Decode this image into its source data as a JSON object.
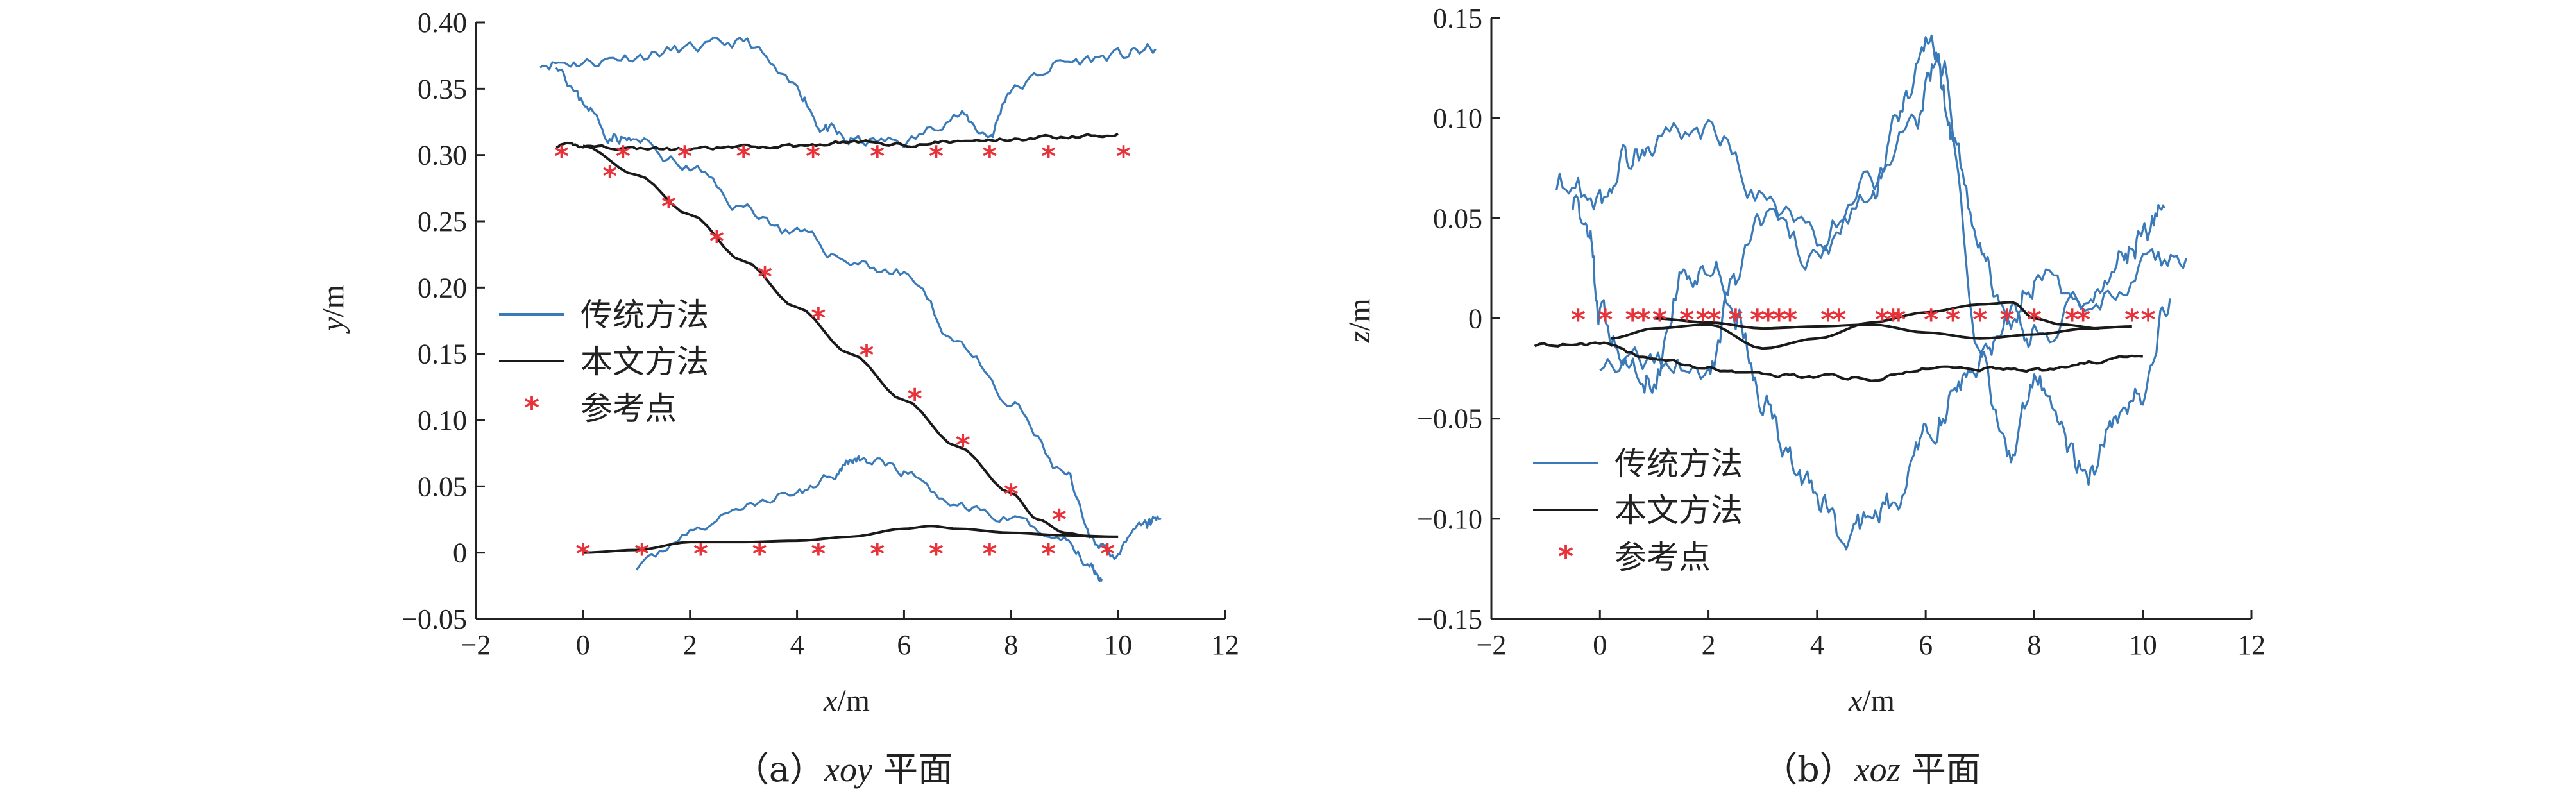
{
  "colors": {
    "traditional": "#3a7ab8",
    "proposed": "#1a1a1a",
    "reference": "#e8323a",
    "axis": "#222222"
  },
  "chart_data": [
    {
      "type": "line",
      "caption": {
        "prefix": "（a）",
        "italic": "xoy",
        "suffix": " 平面"
      },
      "xlabel": {
        "var": "x",
        "unit": "/m"
      },
      "ylabel": {
        "var": "y",
        "unit": "/m"
      },
      "xlim": [
        -2,
        12
      ],
      "ylim": [
        -0.05,
        0.4
      ],
      "xticks": [
        -2,
        0,
        2,
        4,
        6,
        8,
        10,
        12
      ],
      "xtick_labels": [
        "−2",
        "0",
        "2",
        "4",
        "6",
        "8",
        "10",
        "12"
      ],
      "yticks": [
        -0.05,
        0,
        0.05,
        0.1,
        0.15,
        0.2,
        0.25,
        0.3,
        0.35,
        0.4
      ],
      "ytick_labels": [
        "−0.05",
        "0",
        "0.05",
        "0.10",
        "0.15",
        "0.20",
        "0.25",
        "0.30",
        "0.35",
        "0.40"
      ],
      "legend": {
        "position": "middle-left",
        "entries": [
          "传统方法",
          "本文方法",
          "参考点"
        ]
      },
      "series": [
        {
          "name": "传统方法",
          "kind": "line",
          "color_key": "traditional",
          "noise": 0.004,
          "seed": 11,
          "x": [
            -0.8,
            0,
            1,
            2,
            3,
            4,
            4.5,
            5,
            6,
            7,
            7.6,
            8,
            9,
            10,
            10.7
          ],
          "y": [
            0.37,
            0.37,
            0.375,
            0.38,
            0.385,
            0.35,
            0.32,
            0.31,
            0.31,
            0.33,
            0.315,
            0.35,
            0.37,
            0.375,
            0.38
          ]
        },
        {
          "name": "传统方法",
          "kind": "line",
          "color_key": "traditional",
          "noise": 0.004,
          "seed": 23,
          "x": [
            -0.5,
            0,
            0.5,
            1,
            2,
            3,
            4,
            5,
            6,
            7,
            8,
            9,
            9.5,
            10,
            10.5,
            10.8
          ],
          "y": [
            0.37,
            0.34,
            0.315,
            0.31,
            0.29,
            0.26,
            0.24,
            0.22,
            0.21,
            0.16,
            0.11,
            0.06,
            0.01,
            0.0,
            0.02,
            0.025
          ]
        },
        {
          "name": "传统方法",
          "kind": "line",
          "color_key": "traditional",
          "noise": 0.003,
          "seed": 37,
          "x": [
            1,
            2,
            3,
            4,
            4.7,
            5,
            5.3,
            6,
            7,
            8,
            9,
            9.5,
            9.7
          ],
          "y": [
            -0.01,
            0.015,
            0.035,
            0.045,
            0.06,
            0.07,
            0.07,
            0.06,
            0.035,
            0.025,
            0.01,
            -0.01,
            -0.02
          ]
        },
        {
          "name": "本文方法",
          "kind": "line",
          "color_key": "proposed",
          "noise": 0.0012,
          "seed": 41,
          "x": [
            -0.5,
            0,
            1,
            2,
            3,
            4,
            5,
            6,
            7,
            8,
            9,
            10
          ],
          "y": [
            0.307,
            0.307,
            0.305,
            0.304,
            0.306,
            0.307,
            0.31,
            0.308,
            0.31,
            0.312,
            0.314,
            0.316
          ]
        },
        {
          "name": "本文方法",
          "kind": "line",
          "color_key": "proposed",
          "noise": 0,
          "seed": 0,
          "x": [
            0,
            1,
            2,
            3,
            4,
            5,
            6,
            7,
            8,
            8.5,
            9,
            9.5,
            10
          ],
          "y": [
            0.307,
            0.285,
            0.255,
            0.22,
            0.185,
            0.15,
            0.115,
            0.08,
            0.045,
            0.025,
            0.015,
            0.012,
            0.012
          ]
        },
        {
          "name": "本文方法",
          "kind": "line",
          "color_key": "proposed",
          "noise": 0,
          "seed": 0,
          "x": [
            0,
            1,
            2,
            3,
            4,
            5,
            6,
            6.5,
            7,
            8,
            9,
            10
          ],
          "y": [
            0.0,
            0.002,
            0.008,
            0.008,
            0.009,
            0.012,
            0.018,
            0.02,
            0.018,
            0.015,
            0.013,
            0.012
          ]
        },
        {
          "name": "参考点",
          "kind": "marker",
          "color_key": "reference",
          "x": [
            -0.4,
            0.5,
            0.75,
            1.6,
            1.9,
            2.5,
            3.0,
            3.4,
            4.3,
            4.4,
            5.3,
            5.5,
            6.2,
            6.6,
            7.1,
            7.6,
            8.0,
            8.7,
            8.9,
            10.1
          ],
          "y": [
            0.3,
            0.285,
            0.3,
            0.262,
            0.3,
            0.236,
            0.3,
            0.209,
            0.3,
            0.178,
            0.15,
            0.3,
            0.117,
            0.3,
            0.082,
            0.3,
            0.045,
            0.3,
            0.026,
            0.3
          ]
        },
        {
          "name": "参考点",
          "kind": "marker",
          "color_key": "reference",
          "x": [
            0,
            1.1,
            2.2,
            3.3,
            4.4,
            5.5,
            6.6,
            7.6,
            8.7,
            9.8
          ],
          "y": [
            0,
            0,
            0,
            0,
            0,
            0,
            0,
            0,
            0,
            0
          ]
        }
      ]
    },
    {
      "type": "line",
      "caption": {
        "prefix": "（b）",
        "italic": "xoz",
        "suffix": " 平面"
      },
      "xlabel": {
        "var": "x",
        "unit": "/m"
      },
      "ylabel": {
        "var": "z",
        "unit": "/m"
      },
      "xlim": [
        -2,
        12
      ],
      "ylim": [
        -0.15,
        0.15
      ],
      "xticks": [
        -2,
        0,
        2,
        4,
        6,
        8,
        10,
        12
      ],
      "xtick_labels": [
        "−2",
        "0",
        "2",
        "4",
        "6",
        "8",
        "10",
        "12"
      ],
      "yticks": [
        -0.15,
        -0.1,
        -0.05,
        0,
        0.05,
        0.1,
        0.15
      ],
      "ytick_labels": [
        "−0.15",
        "−0.10",
        "−0.05",
        "0",
        "0.05",
        "0.10",
        "0.15"
      ],
      "legend": {
        "position": "bottom-left",
        "entries": [
          "传统方法",
          "本文方法",
          "参考点"
        ]
      },
      "series": [
        {
          "name": "传统方法",
          "kind": "line",
          "color_key": "traditional",
          "noise": 0.006,
          "seed": 53,
          "x": [
            -0.8,
            0,
            0.5,
            1,
            2,
            3,
            4,
            5,
            5.8,
            6.2,
            6.5,
            7,
            7.5,
            8,
            9,
            9.6,
            10,
            10.4
          ],
          "y": [
            0.07,
            0.06,
            0.08,
            0.09,
            0.095,
            0.06,
            0.04,
            0.07,
            0.1,
            0.125,
            0.09,
            0.03,
            0.0,
            -0.01,
            0.01,
            0.03,
            0.04,
            0.055
          ]
        },
        {
          "name": "传统方法",
          "kind": "line",
          "color_key": "traditional",
          "noise": 0.006,
          "seed": 67,
          "x": [
            -0.5,
            -0.2,
            0,
            0.5,
            1,
            1.5,
            2,
            2.5,
            3,
            3.5,
            4,
            4.5,
            5,
            5.5,
            6,
            6.5,
            7,
            7.5,
            8,
            9,
            10,
            10.8
          ],
          "y": [
            0.06,
            0.04,
            0.0,
            -0.025,
            -0.03,
            0.02,
            0.03,
            0.0,
            -0.04,
            -0.07,
            -0.09,
            -0.11,
            -0.1,
            -0.09,
            -0.06,
            -0.04,
            -0.02,
            0.0,
            0.02,
            0.01,
            0.025,
            0.03
          ]
        },
        {
          "name": "传统方法",
          "kind": "line",
          "color_key": "traditional",
          "noise": 0.006,
          "seed": 79,
          "x": [
            0,
            1,
            2,
            2.5,
            3,
            4,
            5,
            5.5,
            6,
            6.3,
            7,
            7.5,
            8,
            8.5,
            9,
            9.5,
            10,
            10.5
          ],
          "y": [
            -0.02,
            -0.02,
            -0.03,
            0.02,
            0.05,
            0.03,
            0.06,
            0.1,
            0.14,
            0.13,
            -0.02,
            -0.07,
            -0.03,
            -0.06,
            -0.08,
            -0.05,
            -0.04,
            0.01
          ]
        },
        {
          "name": "本文方法",
          "kind": "line",
          "color_key": "proposed",
          "noise": 0.0008,
          "seed": 83,
          "x": [
            -1.2,
            0,
            1,
            2,
            3,
            4,
            5,
            6,
            7,
            8,
            9,
            10
          ],
          "y": [
            -0.013,
            -0.013,
            -0.02,
            -0.025,
            -0.028,
            -0.029,
            -0.03,
            -0.025,
            -0.025,
            -0.026,
            -0.022,
            -0.019
          ]
        },
        {
          "name": "本文方法",
          "kind": "line",
          "color_key": "proposed",
          "noise": 0,
          "seed": 0,
          "x": [
            0.2,
            1,
            2,
            3,
            4,
            5,
            6,
            7,
            7.6,
            8,
            8.5,
            9.2
          ],
          "y": [
            -0.01,
            -0.005,
            -0.003,
            -0.015,
            -0.01,
            -0.002,
            0.003,
            0.007,
            0.008,
            0.0,
            -0.003,
            -0.005
          ]
        },
        {
          "name": "本文方法",
          "kind": "line",
          "color_key": "proposed",
          "noise": 0,
          "seed": 0,
          "x": [
            1,
            2,
            3,
            4,
            5,
            6,
            7,
            8,
            9,
            9.8
          ],
          "y": [
            0.0,
            -0.002,
            -0.005,
            -0.004,
            -0.003,
            -0.007,
            -0.01,
            -0.008,
            -0.005,
            -0.004
          ]
        },
        {
          "name": "参考点",
          "kind": "marker",
          "color_key": "reference",
          "x": [
            -0.4,
            0.1,
            0.6,
            0.8,
            1.1,
            1.6,
            1.9,
            2.1,
            2.5,
            2.9,
            3.1,
            3.3,
            3.5,
            4.2,
            4.4,
            5.2,
            5.4,
            5.5,
            6.1,
            6.5,
            7.0,
            7.5,
            8.0,
            8.7,
            8.9,
            9.8,
            10.1
          ],
          "y": [
            0,
            0,
            0,
            0,
            0,
            0,
            0,
            0,
            0,
            0,
            0,
            0,
            0,
            0,
            0,
            0,
            0,
            0,
            0,
            0,
            0,
            0,
            0,
            0,
            0,
            0,
            0
          ]
        }
      ]
    }
  ]
}
